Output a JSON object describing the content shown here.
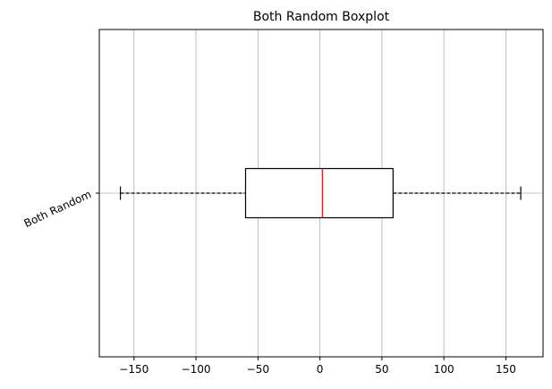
{
  "chart_data": {
    "type": "boxplot",
    "orientation": "horizontal",
    "title": "Both Random Boxplot",
    "xlabel": "",
    "ylabel": "",
    "xlim": [
      -178,
      180
    ],
    "x_ticks": [
      -150,
      -100,
      -50,
      0,
      50,
      100,
      150
    ],
    "x_tick_labels": [
      "−150",
      "−100",
      "−50",
      "0",
      "50",
      "100",
      "150"
    ],
    "categories": [
      "Both Random"
    ],
    "grid": true,
    "boxes": [
      {
        "label": "Both Random",
        "whisker_low": -161,
        "q1": -60,
        "median": 2,
        "q3": 59,
        "whisker_high": 162
      }
    ],
    "colors": {
      "box": "#000000",
      "median": "#d62728",
      "whisker": "#000000",
      "grid": "#b0b0b0"
    }
  }
}
